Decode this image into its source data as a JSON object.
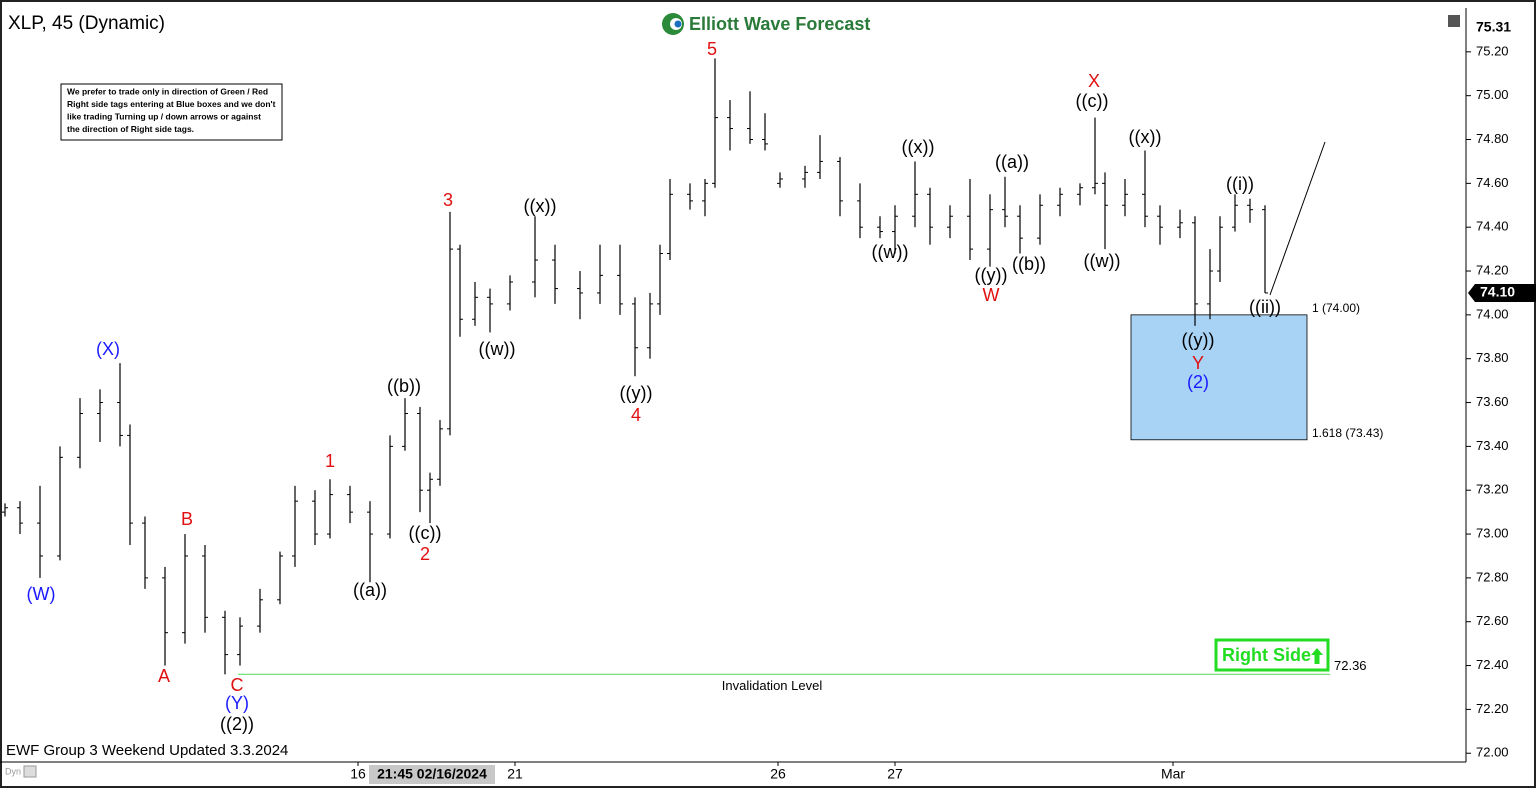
{
  "chart_data": {
    "type": "ohlc",
    "title": "XLP, 45 (Dynamic)",
    "logo": "Elliott Wave Forecast",
    "note_lines": [
      "We prefer to trade only in direction of Green / Red",
      "Right side tags entering at Blue boxes and we don't",
      "like trading Turning up / down arrows or against",
      "the direction of Right side tags."
    ],
    "footer": "EWF Group 3 Weekend Updated 3.3.2024",
    "footer_small": "Dyn",
    "color": "#000000",
    "x": [
      1,
      4,
      8,
      12,
      16,
      20,
      24,
      26,
      29,
      33,
      37,
      41,
      45,
      48,
      52,
      56,
      59,
      63,
      66,
      70,
      74,
      78,
      81,
      84,
      86,
      88,
      90,
      92,
      95,
      98,
      102,
      107,
      111,
      116,
      120,
      124,
      127,
      130,
      132,
      134,
      138,
      141,
      143,
      146,
      150,
      153,
      156,
      161,
      164,
      168,
      172,
      176,
      179,
      183,
      186,
      190,
      194,
      198,
      201,
      204,
      208,
      212,
      216,
      219,
      221,
      225,
      229,
      232,
      236,
      239,
      242,
      244,
      247,
      250,
      253
    ],
    "open": [
      73.1,
      73.12,
      73.05,
      72.9,
      73.35,
      73.55,
      73.6,
      73.45,
      73.05,
      72.8,
      72.55,
      72.9,
      72.62,
      72.45,
      72.58,
      72.7,
      72.9,
      73.15,
      73.0,
      73.18,
      73.1,
      73.0,
      73.4,
      73.55,
      73.2,
      73.25,
      73.48,
      74.3,
      73.98,
      74.08,
      74.05,
      74.15,
      74.25,
      74.12,
      74.1,
      74.18,
      74.05,
      73.85,
      74.05,
      74.28,
      74.55,
      74.52,
      74.6,
      74.9,
      74.85,
      74.8,
      74.6,
      74.62,
      74.65,
      74.7,
      74.52,
      74.4,
      74.38,
      74.45,
      74.55,
      74.4,
      74.45,
      74.3,
      74.48,
      74.45,
      74.35,
      74.5,
      74.55,
      74.58,
      74.6,
      74.5,
      74.55,
      74.45,
      74.4,
      74.42,
      74.05,
      74.2,
      74.4,
      74.5,
      74.48
    ],
    "high": [
      73.14,
      73.15,
      73.22,
      73.4,
      73.62,
      73.66,
      73.78,
      73.5,
      73.08,
      72.85,
      73.0,
      72.95,
      72.65,
      72.62,
      72.75,
      72.92,
      73.22,
      73.2,
      73.25,
      73.22,
      73.15,
      73.45,
      73.62,
      73.58,
      73.28,
      73.52,
      74.47,
      74.32,
      74.15,
      74.12,
      74.18,
      74.45,
      74.32,
      74.2,
      74.32,
      74.32,
      74.08,
      74.1,
      74.32,
      74.62,
      74.6,
      74.62,
      75.17,
      74.98,
      75.02,
      74.92,
      74.65,
      74.68,
      74.82,
      74.72,
      74.6,
      74.45,
      74.5,
      74.7,
      74.58,
      74.5,
      74.62,
      74.55,
      74.63,
      74.5,
      74.55,
      74.58,
      74.6,
      74.9,
      74.65,
      74.62,
      74.75,
      74.5,
      74.48,
      74.45,
      74.3,
      74.45,
      74.55,
      74.53,
      74.5
    ],
    "low": [
      73.08,
      73.0,
      72.8,
      72.88,
      73.3,
      73.42,
      73.4,
      72.95,
      72.75,
      72.4,
      72.5,
      72.55,
      72.36,
      72.4,
      72.55,
      72.68,
      72.85,
      72.95,
      72.98,
      73.05,
      72.78,
      72.98,
      73.38,
      73.1,
      73.05,
      73.22,
      73.45,
      73.9,
      73.95,
      73.92,
      74.02,
      74.08,
      74.05,
      73.98,
      74.05,
      74.0,
      73.72,
      73.8,
      74.0,
      74.25,
      74.48,
      74.45,
      74.58,
      74.75,
      74.78,
      74.75,
      74.58,
      74.58,
      74.62,
      74.45,
      74.35,
      74.35,
      74.28,
      74.4,
      74.32,
      74.35,
      74.25,
      74.22,
      74.4,
      74.28,
      74.32,
      74.45,
      74.5,
      74.55,
      74.3,
      74.45,
      74.4,
      74.32,
      74.35,
      73.95,
      73.98,
      74.15,
      74.38,
      74.42,
      74.1
    ],
    "close": [
      73.12,
      73.05,
      72.9,
      73.35,
      73.55,
      73.6,
      73.45,
      73.05,
      72.8,
      72.55,
      72.9,
      72.62,
      72.45,
      72.58,
      72.7,
      72.9,
      73.15,
      73.0,
      73.18,
      73.1,
      73.0,
      73.4,
      73.55,
      73.2,
      73.25,
      73.48,
      74.3,
      73.98,
      74.08,
      74.05,
      74.15,
      74.25,
      74.12,
      74.1,
      74.18,
      74.05,
      73.85,
      74.05,
      74.28,
      74.55,
      74.52,
      74.6,
      74.9,
      74.85,
      74.8,
      74.78,
      74.62,
      74.65,
      74.7,
      74.52,
      74.4,
      74.38,
      74.45,
      74.55,
      74.4,
      74.45,
      74.3,
      74.48,
      74.45,
      74.35,
      74.5,
      74.55,
      74.58,
      74.6,
      74.5,
      74.55,
      74.45,
      74.4,
      74.42,
      74.05,
      74.2,
      74.4,
      74.5,
      74.48,
      74.1
    ],
    "xlim": [
      0,
      293.2
    ],
    "ylim": [
      71.96,
      75.4
    ],
    "xticks": [
      {
        "value": 71.6,
        "label": "16"
      },
      {
        "value": 103,
        "label": "21"
      },
      {
        "value": 155.6,
        "label": "26"
      },
      {
        "value": 179,
        "label": "27"
      },
      {
        "value": 234.6,
        "label": "Mar"
      }
    ],
    "crosshair_label": {
      "value": 86.4,
      "label": "21:45 02/16/2024"
    },
    "yticks": [
      {
        "value": 72.0,
        "label": "72.00"
      },
      {
        "value": 72.2,
        "label": "72.20"
      },
      {
        "value": 72.4,
        "label": "72.40"
      },
      {
        "value": 72.6,
        "label": "72.60"
      },
      {
        "value": 72.8,
        "label": "72.80"
      },
      {
        "value": 73.0,
        "label": "73.00"
      },
      {
        "value": 73.2,
        "label": "73.20"
      },
      {
        "value": 73.4,
        "label": "73.40"
      },
      {
        "value": 73.6,
        "label": "73.60"
      },
      {
        "value": 73.8,
        "label": "73.80"
      },
      {
        "value": 74.0,
        "label": "74.00"
      },
      {
        "value": 74.2,
        "label": "74.20"
      },
      {
        "value": 74.4,
        "label": "74.40"
      },
      {
        "value": 74.6,
        "label": "74.60"
      },
      {
        "value": 74.8,
        "label": "74.80"
      },
      {
        "value": 75.0,
        "label": "75.00"
      },
      {
        "value": 75.2,
        "label": "75.20"
      }
    ],
    "high_tag": {
      "value": 75.31,
      "label": "75.31"
    },
    "last_tag": {
      "value": 74.1,
      "label": "74.10"
    },
    "box": {
      "top": {
        "value": 74.0,
        "label": "1 (74.00)"
      },
      "bottom": {
        "value": 73.43,
        "label": "1.618 (73.43)"
      },
      "color": "#a9d3f5"
    },
    "invalidation": {
      "value": 72.36,
      "label": "72.36",
      "text": "Invalidation Level",
      "color": "#66dd66"
    },
    "right_side": {
      "text": "Right Side",
      "color": "#22dd22"
    },
    "wave_labels": [
      {
        "text": "(W)",
        "color": "#1a1aff"
      },
      {
        "text": "(X)",
        "color": "#1a1aff"
      },
      {
        "text": "A",
        "color": "#e01010"
      },
      {
        "text": "B",
        "color": "#e01010"
      },
      {
        "text": "C",
        "color": "#e01010"
      },
      {
        "text": "(Y)",
        "color": "#1a1aff"
      },
      {
        "text": "((2))",
        "color": "#000000"
      },
      {
        "text": "1",
        "color": "#e01010"
      },
      {
        "text": "((a))",
        "color": "#000000"
      },
      {
        "text": "((b))",
        "color": "#000000"
      },
      {
        "text": "((c))",
        "color": "#000000"
      },
      {
        "text": "2",
        "color": "#e01010"
      },
      {
        "text": "3",
        "color": "#e01010"
      },
      {
        "text": "((w))",
        "color": "#000000"
      },
      {
        "text": "((x))",
        "color": "#000000"
      },
      {
        "text": "((y))",
        "color": "#000000"
      },
      {
        "text": "4",
        "color": "#e01010"
      },
      {
        "text": "5",
        "color": "#e01010"
      },
      {
        "text": "((w))",
        "color": "#000000"
      },
      {
        "text": "((x))",
        "color": "#000000"
      },
      {
        "text": "((a))",
        "color": "#000000"
      },
      {
        "text": "((y))",
        "color": "#000000"
      },
      {
        "text": "((b))",
        "color": "#000000"
      },
      {
        "text": "W",
        "color": "#e01010"
      },
      {
        "text": "X",
        "color": "#e01010"
      },
      {
        "text": "((c))",
        "color": "#000000"
      },
      {
        "text": "((x))",
        "color": "#000000"
      },
      {
        "text": "((w))",
        "color": "#000000"
      },
      {
        "text": "((i))",
        "color": "#000000"
      },
      {
        "text": "((ii))",
        "color": "#000000"
      },
      {
        "text": "((y))",
        "color": "#000000"
      },
      {
        "text": "Y",
        "color": "#e01010"
      },
      {
        "text": "(2)",
        "color": "#1a1aff"
      }
    ]
  }
}
